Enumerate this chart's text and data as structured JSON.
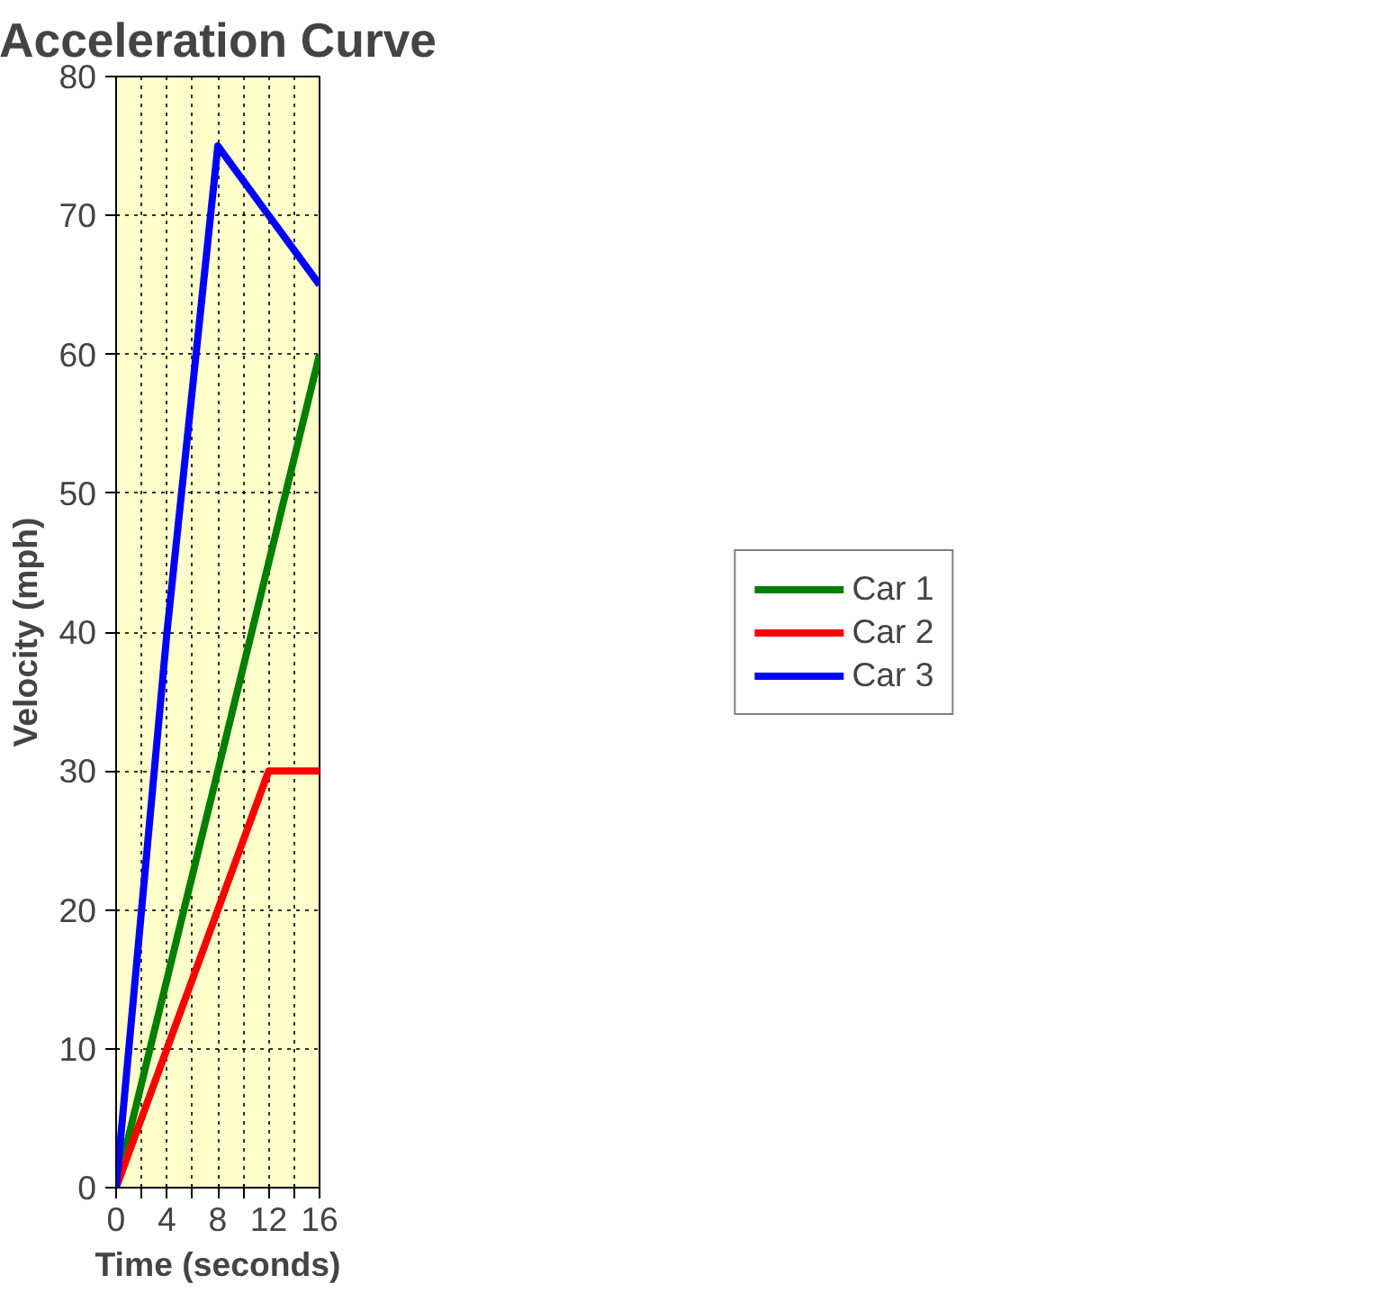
{
  "chart_data": {
    "type": "line",
    "title": "Acceleration Curve",
    "xlabel": "Time (seconds)",
    "ylabel": "Velocity (mph)",
    "x": [
      0,
      4,
      8,
      12,
      16
    ],
    "series": [
      {
        "name": "Car 1",
        "color": "#008000",
        "values": [
          0,
          15,
          30,
          45,
          60
        ]
      },
      {
        "name": "Car 2",
        "color": "#ff0000",
        "values": [
          0,
          10,
          20,
          30,
          30
        ]
      },
      {
        "name": "Car 3",
        "color": "#0000ff",
        "values": [
          0,
          40,
          75,
          70,
          65
        ]
      }
    ],
    "xlim": [
      0,
      16
    ],
    "xticks": [
      0,
      {
        "value": 2,
        "label": null
      },
      4,
      {
        "value": 6,
        "label": null
      },
      8,
      {
        "value": 10,
        "label": null
      },
      12,
      {
        "value": 14,
        "label": null
      },
      16
    ],
    "ylim": [
      0,
      80
    ],
    "yticks": [
      0,
      10,
      20,
      30,
      40,
      50,
      60,
      70,
      80
    ],
    "grid": true,
    "legend": "right",
    "marker": "none",
    "line_style": "solid"
  }
}
